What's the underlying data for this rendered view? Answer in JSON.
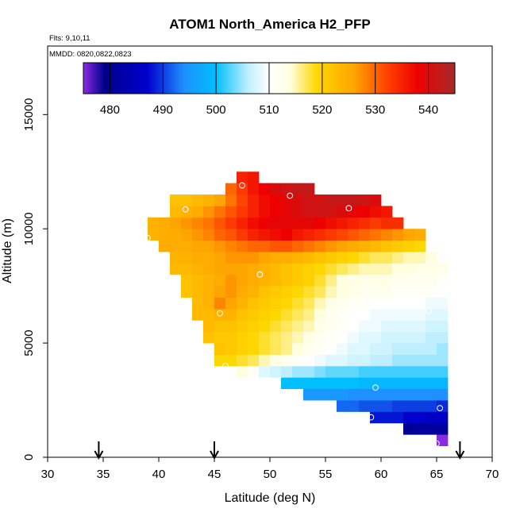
{
  "chart_data": {
    "type": "heatmap",
    "title": "ATOM1 North_America H2_PFP",
    "flights_label": "Flts: 9,10,11",
    "dates_label": "MMDD: 0820,0822,0823",
    "xlabel": "Latitude (deg N)",
    "ylabel": "Altitude (m)",
    "xlim": [
      30,
      70
    ],
    "ylim": [
      0,
      18000
    ],
    "x_ticks": [
      30,
      35,
      40,
      45,
      50,
      55,
      60,
      65,
      70
    ],
    "y_ticks": [
      0,
      5000,
      10000,
      15000
    ],
    "colorbar": {
      "min": 475,
      "max": 545,
      "ticks": [
        480,
        490,
        500,
        510,
        520,
        530,
        540
      ],
      "stops": [
        {
          "v": 475,
          "c": "#8a2be2"
        },
        {
          "v": 479,
          "c": "#00008b"
        },
        {
          "v": 487,
          "c": "#0000cd"
        },
        {
          "v": 494,
          "c": "#1e90ff"
        },
        {
          "v": 500,
          "c": "#00bfff"
        },
        {
          "v": 506,
          "c": "#bfefff"
        },
        {
          "v": 510,
          "c": "#ffffff"
        },
        {
          "v": 514,
          "c": "#ffffe0"
        },
        {
          "v": 519,
          "c": "#ffd700"
        },
        {
          "v": 526,
          "c": "#ffa500"
        },
        {
          "v": 532,
          "c": "#ff4500"
        },
        {
          "v": 538,
          "c": "#ee0000"
        },
        {
          "v": 545,
          "c": "#a52a2a"
        }
      ]
    },
    "grid": {
      "lat_start": 30,
      "lat_step": 1,
      "alt_start": 0,
      "alt_step": 500,
      "description": "rows: altitude bin start (m); vals: H2 (ppb) for consecutive 1-degree latitude bins beginning at lat0",
      "rows": [
        {
          "alt": 500,
          "lat0": 65,
          "vals": [
            474
          ]
        },
        {
          "alt": 1000,
          "lat0": 62,
          "vals": [
            480,
            481,
            481,
            481
          ]
        },
        {
          "alt": 1500,
          "lat0": 59,
          "vals": [
            488,
            488,
            488,
            487,
            487,
            486,
            486
          ]
        },
        {
          "alt": 2000,
          "lat0": 56,
          "vals": [
            492,
            492,
            491,
            491,
            491,
            490,
            490,
            490,
            490,
            489
          ]
        },
        {
          "alt": 2500,
          "lat0": 53,
          "vals": [
            495,
            495,
            495,
            495,
            494,
            494,
            494,
            494,
            494,
            494,
            494,
            494,
            494
          ]
        },
        {
          "alt": 3000,
          "lat0": 51,
          "vals": [
            500,
            500,
            500,
            500,
            500,
            500,
            500,
            499,
            499,
            499,
            499,
            499,
            499,
            499,
            499
          ]
        },
        {
          "alt": 3500,
          "lat0": 47,
          "vals": [
            514,
            511,
            508,
            507,
            506,
            505,
            505,
            504,
            503,
            503,
            503,
            502,
            502,
            502,
            502,
            502,
            502,
            502,
            502
          ]
        },
        {
          "alt": 4000,
          "lat0": 45,
          "vals": [
            519,
            519,
            518,
            517,
            515,
            513,
            512,
            511,
            510,
            509,
            508,
            508,
            507,
            507,
            506,
            506,
            505,
            505,
            505,
            505,
            505
          ]
        },
        {
          "alt": 4500,
          "lat0": 45,
          "vals": [
            522,
            521,
            520,
            519,
            518,
            517,
            516,
            514,
            512,
            511,
            510,
            509,
            508,
            508,
            507,
            507,
            506,
            506,
            506,
            506,
            505
          ]
        },
        {
          "alt": 5000,
          "lat0": 44,
          "vals": [
            522,
            521,
            521,
            520,
            519,
            518,
            517,
            516,
            515,
            513,
            512,
            511,
            510,
            509,
            508,
            508,
            507,
            507,
            507,
            507,
            506,
            506
          ]
        },
        {
          "alt": 5500,
          "lat0": 44,
          "vals": [
            523,
            522,
            522,
            521,
            520,
            519,
            518,
            517,
            516,
            515,
            513,
            512,
            511,
            510,
            509,
            509,
            508,
            508,
            508,
            508,
            507,
            507
          ]
        },
        {
          "alt": 6000,
          "lat0": 43,
          "vals": [
            523,
            523,
            524,
            524,
            522,
            521,
            520,
            519,
            518,
            517,
            516,
            514,
            512,
            511,
            510,
            510,
            509,
            509,
            509,
            509,
            509,
            508,
            508
          ]
        },
        {
          "alt": 6500,
          "lat0": 43,
          "vals": [
            523,
            524,
            528,
            526,
            524,
            522,
            521,
            520,
            519,
            518,
            517,
            515,
            513,
            512,
            511,
            511,
            510,
            510,
            510,
            510,
            510,
            509,
            509
          ]
        },
        {
          "alt": 7000,
          "lat0": 42,
          "vals": [
            522,
            523,
            524,
            526,
            527,
            525,
            524,
            522,
            521,
            520,
            519,
            518,
            517,
            515,
            514,
            513,
            512,
            512,
            512,
            511,
            511,
            511,
            511,
            510
          ]
        },
        {
          "alt": 7500,
          "lat0": 42,
          "vals": [
            522,
            523,
            524,
            525,
            527,
            526,
            525,
            524,
            523,
            522,
            521,
            520,
            518,
            516,
            514,
            513,
            513,
            513,
            513,
            512,
            512,
            512,
            512,
            511
          ]
        },
        {
          "alt": 8000,
          "lat0": 41,
          "vals": [
            523,
            523,
            524,
            525,
            526,
            526,
            526,
            525,
            524,
            523,
            522,
            521,
            520,
            519,
            518,
            517,
            516,
            515,
            515,
            515,
            514,
            514,
            513,
            513,
            513
          ]
        },
        {
          "alt": 8500,
          "lat0": 41,
          "vals": [
            524,
            524,
            525,
            525,
            526,
            527,
            527,
            527,
            526,
            525,
            525,
            524,
            523,
            522,
            521,
            520,
            519,
            518,
            517,
            517,
            516,
            515,
            515,
            514
          ]
        },
        {
          "alt": 9000,
          "lat0": 40,
          "vals": [
            525,
            525,
            525,
            526,
            526,
            527,
            528,
            529,
            530,
            530,
            531,
            531,
            530,
            529,
            528,
            527,
            526,
            525,
            524,
            523,
            522,
            521,
            520,
            519
          ]
        },
        {
          "alt": 9500,
          "lat0": 39,
          "vals": [
            524,
            525,
            525,
            526,
            527,
            528,
            530,
            531,
            533,
            535,
            536,
            537,
            538,
            536,
            535,
            534,
            533,
            532,
            531,
            530,
            529,
            528,
            527,
            526,
            525
          ]
        },
        {
          "alt": 10000,
          "lat0": 39,
          "vals": [
            524,
            525,
            526,
            527,
            528,
            529,
            531,
            533,
            535,
            537,
            538,
            539,
            539,
            539,
            539,
            538,
            537,
            536,
            535,
            534,
            533,
            534,
            534
          ]
        },
        {
          "alt": 10500,
          "lat0": 41,
          "vals": [
            523,
            524,
            525,
            527,
            529,
            531,
            533,
            535,
            537,
            538,
            539,
            540,
            541,
            541,
            541,
            540,
            539,
            538,
            537,
            536
          ]
        },
        {
          "alt": 11000,
          "lat0": 41,
          "vals": [
            522,
            522,
            523,
            524,
            526,
            529,
            532,
            535,
            537,
            538,
            539,
            540,
            541,
            541,
            542,
            542,
            542,
            541,
            540
          ]
        },
        {
          "alt": 11500,
          "lat0": 46,
          "vals": [
            530,
            533,
            536,
            538,
            540,
            541,
            542,
            542
          ]
        },
        {
          "alt": 12000,
          "lat0": 47,
          "vals": [
            535,
            536
          ]
        }
      ]
    },
    "sample_points": [
      {
        "lat": 47.5,
        "alt": 11900
      },
      {
        "lat": 51.8,
        "alt": 11450
      },
      {
        "lat": 42.4,
        "alt": 10850
      },
      {
        "lat": 57.1,
        "alt": 10900
      },
      {
        "lat": 39.0,
        "alt": 9600
      },
      {
        "lat": 49.1,
        "alt": 8000
      },
      {
        "lat": 63.4,
        "alt": 8050
      },
      {
        "lat": 45.5,
        "alt": 6300
      },
      {
        "lat": 64.3,
        "alt": 6400
      },
      {
        "lat": 46.0,
        "alt": 4000
      },
      {
        "lat": 50.5,
        "alt": 3200
      },
      {
        "lat": 59.5,
        "alt": 3050
      },
      {
        "lat": 65.3,
        "alt": 2150
      },
      {
        "lat": 59.1,
        "alt": 1750
      },
      {
        "lat": 65.0,
        "alt": 600
      }
    ],
    "arrows_lat": [
      34.6,
      45.0,
      67.1
    ]
  }
}
